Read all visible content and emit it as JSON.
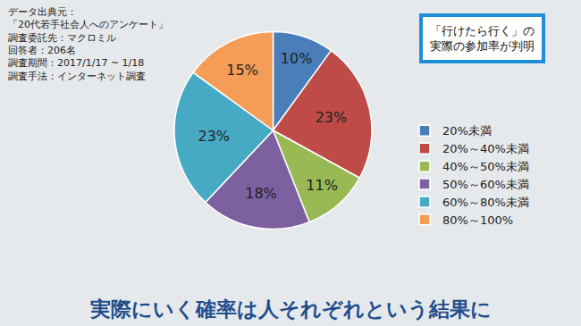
{
  "chart_data": {
    "type": "pie",
    "title": "実際にいく確率は人それぞれという結果に",
    "categories": [
      "20%未満",
      "20%～40%未満",
      "40%～50%未満",
      "50%～60%未満",
      "60%～80%未満",
      "80%～100%"
    ],
    "values": [
      10,
      23,
      11,
      18,
      23,
      15
    ],
    "value_labels": [
      "10%",
      "23%",
      "11%",
      "18%",
      "23%",
      "15%"
    ],
    "colors": [
      "#4a7ebb",
      "#be4b48",
      "#98b954",
      "#7d60a0",
      "#46aac5",
      "#f59d56"
    ],
    "data_labels": true,
    "legend": "right",
    "annotations": [
      {
        "lines": [
          "データ出典元：",
          "「20代若手社会人へのアンケート」",
          "調査委託先：マクロミル",
          "回答者：206名",
          "調査期間：2017/1/17 ~ 1/18",
          "調査手法：インターネット調査"
        ]
      },
      {
        "lines": [
          "「行けたら行く」の",
          "実際の参加率が判明"
        ]
      }
    ]
  }
}
